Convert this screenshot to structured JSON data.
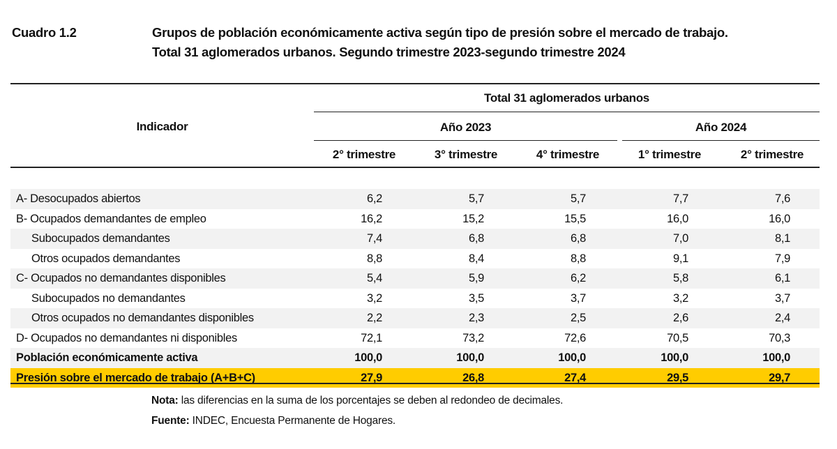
{
  "header": {
    "table_number": "Cuadro 1.2",
    "title_line1": "Grupos de población económicamente activa según tipo de presión sobre el mercado de trabajo.",
    "title_line2": "Total 31 aglomerados urbanos. Segundo trimestre 2023-segundo trimestre 2024"
  },
  "table": {
    "indicator_header": "Indicador",
    "group_header": "Total 31 aglomerados urbanos",
    "years": [
      "Año 2023",
      "Año 2024"
    ],
    "columns": [
      "2° trimestre",
      "3° trimestre",
      "4° trimestre",
      "1° trimestre",
      "2° trimestre"
    ],
    "rows": [
      {
        "label": "A- Desocupados abiertos",
        "values": [
          "6,2",
          "5,7",
          "5,7",
          "7,7",
          "7,6"
        ],
        "style": "shade"
      },
      {
        "label": "B- Ocupados demandantes de empleo",
        "values": [
          "16,2",
          "15,2",
          "15,5",
          "16,0",
          "16,0"
        ],
        "style": ""
      },
      {
        "label": "Subocupados demandantes",
        "values": [
          "7,4",
          "6,8",
          "6,8",
          "7,0",
          "8,1"
        ],
        "style": "shade",
        "indent": true
      },
      {
        "label": "Otros ocupados demandantes",
        "values": [
          "8,8",
          "8,4",
          "8,8",
          "9,1",
          "7,9"
        ],
        "style": "",
        "indent": true
      },
      {
        "label": "C- Ocupados no demandantes disponibles",
        "values": [
          "5,4",
          "5,9",
          "6,2",
          "5,8",
          "6,1"
        ],
        "style": "shade"
      },
      {
        "label": "Subocupados no demandantes",
        "values": [
          "3,2",
          "3,5",
          "3,7",
          "3,2",
          "3,7"
        ],
        "style": "",
        "indent": true
      },
      {
        "label": "Otros ocupados no demandantes disponibles",
        "values": [
          "2,2",
          "2,3",
          "2,5",
          "2,6",
          "2,4"
        ],
        "style": "shade",
        "indent": true
      },
      {
        "label": "D- Ocupados no demandantes ni disponibles",
        "values": [
          "72,1",
          "73,2",
          "72,6",
          "70,5",
          "70,3"
        ],
        "style": ""
      },
      {
        "label": "Población económicamente activa",
        "values": [
          "100,0",
          "100,0",
          "100,0",
          "100,0",
          "100,0"
        ],
        "style": "shade bold"
      },
      {
        "label": "Presión sobre el mercado de trabajo (A+B+C)",
        "values": [
          "27,9",
          "26,8",
          "27,4",
          "29,5",
          "29,7"
        ],
        "style": "yellow"
      }
    ]
  },
  "notes": {
    "nota_label": "Nota:",
    "nota_text": " las diferencias en la suma de los porcentajes se deben al redondeo de decimales.",
    "fuente_label": "Fuente:",
    "fuente_text": " INDEC, Encuesta Permanente de Hogares."
  },
  "colors": {
    "highlight": "#ffcc00",
    "shade": "#f2f2f2"
  }
}
